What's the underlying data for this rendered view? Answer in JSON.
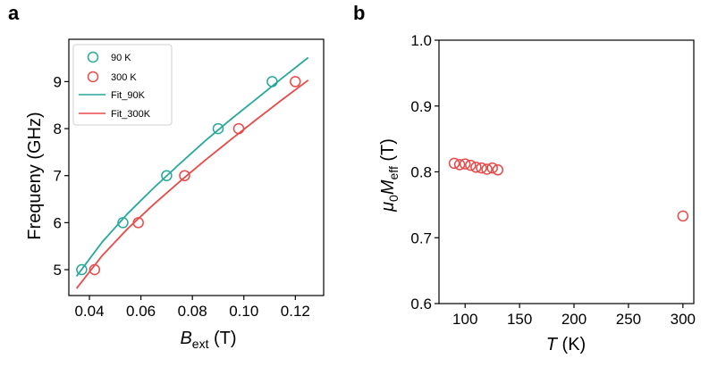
{
  "panels": {
    "a": {
      "label": "a"
    },
    "b": {
      "label": "b"
    }
  },
  "colors": {
    "teal": "#27a89a",
    "red": "#e84a4a",
    "axis": "#000000"
  },
  "chart_data": [
    {
      "type": "scatter",
      "panel": "a",
      "title": "",
      "xlabel_main": "B",
      "xlabel_sub": "ext",
      "xlabel_unit": " (T)",
      "ylabel": "Frequeny (GHz)",
      "xlim": [
        0.032,
        0.131
      ],
      "ylim": [
        4.45,
        9.9
      ],
      "xticks": [
        0.04,
        0.06,
        0.08,
        0.1,
        0.12
      ],
      "xtick_labels": [
        "0.04",
        "0.06",
        "0.08",
        "0.10",
        "0.12"
      ],
      "yticks": [
        5,
        6,
        7,
        8,
        9
      ],
      "ytick_labels": [
        "5",
        "6",
        "7",
        "8",
        "9"
      ],
      "legend_position": "top-left",
      "series": [
        {
          "name": "90 K",
          "kind": "points",
          "color": "#27a89a",
          "x": [
            0.037,
            0.053,
            0.07,
            0.09,
            0.111
          ],
          "y": [
            5,
            6,
            7,
            8,
            9
          ]
        },
        {
          "name": "300 K",
          "kind": "points",
          "color": "#e84a4a",
          "x": [
            0.042,
            0.059,
            0.077,
            0.098,
            0.12
          ],
          "y": [
            5,
            6,
            7,
            8,
            9
          ]
        },
        {
          "name": "Fit_90K",
          "kind": "line",
          "color": "#27a89a",
          "x": [
            0.035,
            0.045,
            0.055,
            0.065,
            0.075,
            0.085,
            0.095,
            0.105,
            0.115,
            0.125
          ],
          "y": [
            4.86,
            5.59,
            6.2,
            6.74,
            7.25,
            7.74,
            8.2,
            8.64,
            9.08,
            9.51
          ]
        },
        {
          "name": "Fit_300K",
          "kind": "line",
          "color": "#e84a4a",
          "x": [
            0.035,
            0.045,
            0.055,
            0.065,
            0.075,
            0.085,
            0.095,
            0.105,
            0.115,
            0.125
          ],
          "y": [
            4.6,
            5.3,
            5.88,
            6.39,
            6.87,
            7.33,
            7.77,
            8.2,
            8.62,
            9.03
          ]
        }
      ]
    },
    {
      "type": "scatter",
      "panel": "b",
      "title": "",
      "xlabel_main": "T",
      "xlabel_unit": " (K)",
      "ylabel_prefix": "μ",
      "ylabel_sub1": "0",
      "ylabel_mid": "M",
      "ylabel_sub2": "eff",
      "ylabel_unit": " (T)",
      "xlim": [
        76,
        310
      ],
      "ylim": [
        0.6,
        1.0
      ],
      "xticks": [
        100,
        150,
        200,
        250,
        300
      ],
      "xtick_labels": [
        "100",
        "150",
        "200",
        "250",
        "300"
      ],
      "yticks": [
        0.6,
        0.7,
        0.8,
        0.9,
        1.0
      ],
      "ytick_labels": [
        "0.6",
        "0.7",
        "0.8",
        "0.9",
        "1.0"
      ],
      "series": [
        {
          "name": "M_eff",
          "kind": "points",
          "color": "#e84a4a",
          "x": [
            90,
            95,
            100,
            105,
            110,
            115,
            120,
            125,
            130,
            300
          ],
          "y": [
            0.813,
            0.811,
            0.812,
            0.81,
            0.807,
            0.806,
            0.804,
            0.806,
            0.803,
            0.733
          ]
        }
      ]
    }
  ]
}
